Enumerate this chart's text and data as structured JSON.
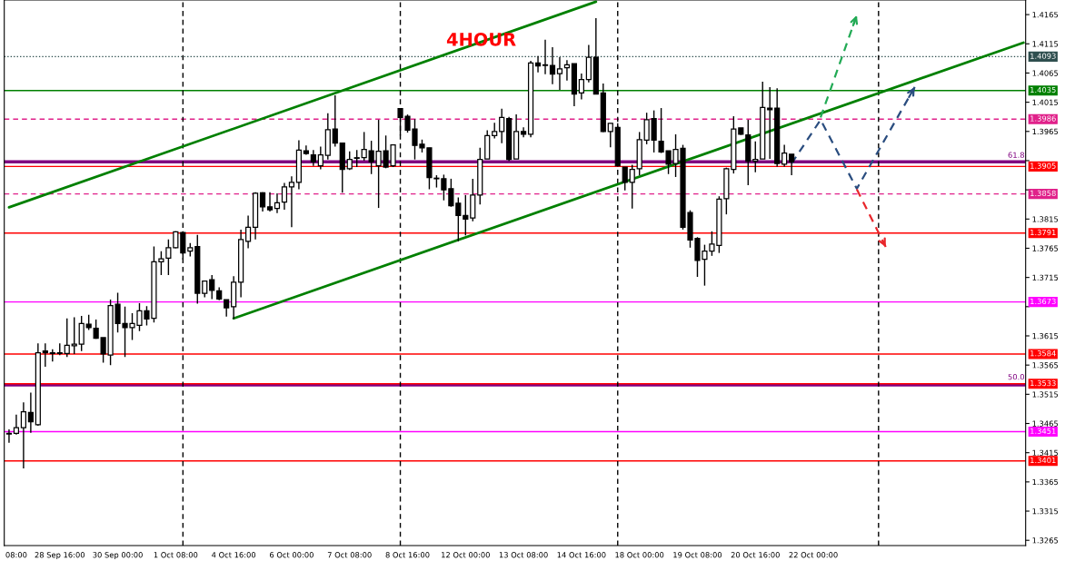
{
  "chart_data": {
    "type": "candlestick",
    "title": "4HOUR",
    "categories": [
      null,
      "08:00",
      null,
      null,
      null,
      null,
      null,
      "28 Sep 16:00",
      null,
      null,
      null,
      null,
      null,
      null,
      null,
      "30 Sep 00:00",
      null,
      null,
      null,
      null,
      null,
      null,
      null,
      "1 Oct 08:00",
      null,
      null,
      null,
      null,
      null,
      null,
      null,
      "4 Oct 16:00",
      null,
      null,
      null,
      null,
      null,
      null,
      null,
      "6 Oct 00:00",
      null,
      null,
      null,
      null,
      null,
      null,
      null,
      "7 Oct 08:00",
      null,
      null,
      null,
      null,
      null,
      null,
      null,
      "8 Oct 16:00",
      null,
      null,
      null,
      null,
      null,
      null,
      null,
      "12 Oct 00:00",
      null,
      null,
      null,
      null,
      null,
      null,
      null,
      "13 Oct 08:00",
      null,
      null,
      null,
      null,
      null,
      null,
      null,
      "14 Oct 16:00",
      null,
      null,
      null,
      null,
      null,
      null,
      null,
      "18 Oct 00:00",
      null,
      null,
      null,
      null,
      null,
      null,
      null,
      "19 Oct 08:00",
      null,
      null,
      null,
      null,
      null,
      null,
      null,
      "20 Oct 16:00",
      null,
      null,
      null,
      null,
      null,
      null,
      null,
      "22 Oct 00:00",
      null,
      null,
      null,
      null,
      null,
      null,
      null,
      null,
      null,
      null,
      null,
      null,
      null,
      null,
      null,
      null,
      null,
      null,
      null,
      null,
      null,
      null,
      null,
      null,
      null,
      null,
      null,
      null,
      null
    ],
    "ohlc": [
      [
        1.3447,
        1.3455,
        1.3432,
        1.3448
      ],
      [
        1.3448,
        1.348,
        1.3446,
        1.3458
      ],
      [
        1.3458,
        1.3501,
        1.3388,
        1.3485
      ],
      [
        1.3484,
        1.3518,
        1.3449,
        1.3468
      ],
      [
        1.3463,
        1.3602,
        1.3461,
        1.3586
      ],
      [
        1.3589,
        1.3602,
        1.3562,
        1.3586
      ],
      [
        1.3585,
        1.3592,
        1.3571,
        1.3586
      ],
      [
        1.3585,
        1.3602,
        1.3582,
        1.3586
      ],
      [
        1.3585,
        1.3645,
        1.3579,
        1.3599
      ],
      [
        1.3598,
        1.3647,
        1.3584,
        1.3601
      ],
      [
        1.3601,
        1.3649,
        1.3589,
        1.3636
      ],
      [
        1.3635,
        1.3651,
        1.3625,
        1.3629
      ],
      [
        1.3628,
        1.3643,
        1.361,
        1.3611
      ],
      [
        1.3612,
        1.3612,
        1.3569,
        1.3584
      ],
      [
        1.3582,
        1.3677,
        1.3565,
        1.3667
      ],
      [
        1.3669,
        1.3689,
        1.3621,
        1.3636
      ],
      [
        1.3636,
        1.3665,
        1.3579,
        1.3629
      ],
      [
        1.3629,
        1.3654,
        1.3608,
        1.3636
      ],
      [
        1.3633,
        1.3671,
        1.3623,
        1.3658
      ],
      [
        1.3658,
        1.3666,
        1.3633,
        1.3644
      ],
      [
        1.3645,
        1.3768,
        1.3638,
        1.3742
      ],
      [
        1.3742,
        1.376,
        1.3719,
        1.3747
      ],
      [
        1.3748,
        1.378,
        1.3719,
        1.3766
      ],
      [
        1.3766,
        1.3794,
        1.3765,
        1.3793
      ],
      [
        1.3792,
        1.3794,
        1.3746,
        1.3757
      ],
      [
        1.376,
        1.3774,
        1.3751,
        1.3766
      ],
      [
        1.3768,
        1.3788,
        1.367,
        1.3688
      ],
      [
        1.3688,
        1.3709,
        1.3681,
        1.3709
      ],
      [
        1.3711,
        1.3719,
        1.3678,
        1.3693
      ],
      [
        1.3692,
        1.3698,
        1.3676,
        1.3678
      ],
      [
        1.3677,
        1.3677,
        1.3648,
        1.3663
      ],
      [
        1.3665,
        1.3717,
        1.3644,
        1.3707
      ],
      [
        1.3707,
        1.3797,
        1.3681,
        1.378
      ],
      [
        1.3777,
        1.3821,
        1.3765,
        1.3801
      ],
      [
        1.3801,
        1.3861,
        1.378,
        1.3859
      ],
      [
        1.386,
        1.3861,
        1.3828,
        1.3836
      ],
      [
        1.3836,
        1.3861,
        1.3828,
        1.3831
      ],
      [
        1.3833,
        1.3859,
        1.3825,
        1.3843
      ],
      [
        1.3844,
        1.3877,
        1.3831,
        1.387
      ],
      [
        1.387,
        1.3888,
        1.3801,
        1.3878
      ],
      [
        1.3878,
        1.395,
        1.3866,
        1.3933
      ],
      [
        1.3932,
        1.3941,
        1.3925,
        1.3927
      ],
      [
        1.3925,
        1.3933,
        1.3906,
        1.3913
      ],
      [
        1.3906,
        1.3939,
        1.39,
        1.3925
      ],
      [
        1.3924,
        1.3996,
        1.3917,
        1.3968
      ],
      [
        1.3969,
        1.4027,
        1.3939,
        1.3945
      ],
      [
        1.3945,
        1.3945,
        1.386,
        1.39
      ],
      [
        1.3901,
        1.3931,
        1.3899,
        1.3917
      ],
      [
        1.3919,
        1.3933,
        1.3904,
        1.392
      ],
      [
        1.392,
        1.3964,
        1.3915,
        1.3934
      ],
      [
        1.3932,
        1.3949,
        1.3892,
        1.3913
      ],
      [
        1.3906,
        1.3985,
        1.3834,
        1.3931
      ],
      [
        1.3932,
        1.3958,
        1.3902,
        1.3904
      ],
      [
        1.3906,
        1.3942,
        1.3904,
        1.3942
      ],
      [
        1.4004,
        1.4004,
        1.3958,
        1.3989
      ],
      [
        1.3991,
        1.3994,
        1.3963,
        1.3967
      ],
      [
        1.3969,
        1.3986,
        1.3917,
        1.3941
      ],
      [
        1.3943,
        1.3951,
        1.3929,
        1.3937
      ],
      [
        1.3937,
        1.3937,
        1.3866,
        1.3886
      ],
      [
        1.3885,
        1.389,
        1.3869,
        1.3884
      ],
      [
        1.3884,
        1.3891,
        1.3847,
        1.3865
      ],
      [
        1.3867,
        1.3884,
        1.3836,
        1.3838
      ],
      [
        1.3842,
        1.3852,
        1.3777,
        1.3821
      ],
      [
        1.3821,
        1.3856,
        1.3787,
        1.3815
      ],
      [
        1.3817,
        1.3884,
        1.3811,
        1.3856
      ],
      [
        1.3856,
        1.3937,
        1.384,
        1.3917
      ],
      [
        1.3918,
        1.3967,
        1.3918,
        1.3958
      ],
      [
        1.3958,
        1.398,
        1.3953,
        1.3965
      ],
      [
        1.3965,
        1.4004,
        1.3945,
        1.3989
      ],
      [
        1.3987,
        1.399,
        1.3914,
        1.3917
      ],
      [
        1.3918,
        1.3994,
        1.3918,
        1.3965
      ],
      [
        1.3965,
        1.3972,
        1.3955,
        1.396
      ],
      [
        1.396,
        1.4086,
        1.3955,
        1.4082
      ],
      [
        1.4082,
        1.4094,
        1.4066,
        1.4077
      ],
      [
        1.4079,
        1.4122,
        1.4063,
        1.4078
      ],
      [
        1.4078,
        1.4109,
        1.4046,
        1.4063
      ],
      [
        1.4064,
        1.4092,
        1.4036,
        1.4072
      ],
      [
        1.4074,
        1.4087,
        1.4052,
        1.4079
      ],
      [
        1.4081,
        1.4081,
        1.4008,
        1.4029
      ],
      [
        1.4031,
        1.4064,
        1.402,
        1.4054
      ],
      [
        1.4054,
        1.4113,
        1.4049,
        1.4092
      ],
      [
        1.4092,
        1.4159,
        1.4029,
        1.4029
      ],
      [
        1.4031,
        1.4047,
        1.3964,
        1.3965
      ],
      [
        1.3965,
        1.3979,
        1.3938,
        1.3979
      ],
      [
        1.3972,
        1.3979,
        1.3905,
        1.3906
      ],
      [
        1.3904,
        1.3904,
        1.3864,
        1.3878
      ],
      [
        1.3878,
        1.3908,
        1.3833,
        1.39
      ],
      [
        1.3901,
        1.3964,
        1.389,
        1.3951
      ],
      [
        1.395,
        1.3997,
        1.3943,
        1.3985
      ],
      [
        1.3987,
        1.4001,
        1.3929,
        1.395
      ],
      [
        1.3948,
        1.4005,
        1.3928,
        1.393
      ],
      [
        1.3932,
        1.3932,
        1.3892,
        1.3909
      ],
      [
        1.391,
        1.396,
        1.3887,
        1.3934
      ],
      [
        1.3936,
        1.3942,
        1.3797,
        1.3801
      ],
      [
        1.3826,
        1.383,
        1.3766,
        1.3779
      ],
      [
        1.3782,
        1.3784,
        1.3716,
        1.3744
      ],
      [
        1.3746,
        1.3771,
        1.3701,
        1.376
      ],
      [
        1.376,
        1.3794,
        1.3752,
        1.3772
      ],
      [
        1.377,
        1.3854,
        1.3757,
        1.3849
      ],
      [
        1.385,
        1.3903,
        1.3823,
        1.3901
      ],
      [
        1.39,
        1.3991,
        1.3893,
        1.3969
      ],
      [
        1.3971,
        1.3971,
        1.3959,
        1.396
      ],
      [
        1.3959,
        1.3985,
        1.3873,
        1.3914
      ],
      [
        1.3914,
        1.3948,
        1.3895,
        1.3917
      ],
      [
        1.3918,
        1.405,
        1.3918,
        1.4006
      ],
      [
        1.4005,
        1.4041,
        1.3918,
        1.4002
      ],
      [
        1.4005,
        1.4039,
        1.3905,
        1.391
      ],
      [
        1.3909,
        1.3942,
        1.3905,
        1.3928
      ],
      [
        1.3926,
        1.3926,
        1.389,
        1.3913
      ],
      null,
      null,
      null,
      null,
      null,
      null,
      null,
      null,
      null,
      null,
      null,
      null,
      null,
      null,
      null,
      null,
      null,
      null,
      null,
      null,
      null,
      null,
      null,
      null,
      null,
      null,
      null,
      null,
      null,
      null,
      null,
      null
    ],
    "series": [
      {
        "type": "line",
        "color": "#008000",
        "line_style": "solid",
        "values": [
          1.3835,
          null,
          null,
          null,
          null,
          null,
          null,
          null,
          null,
          null,
          null,
          null,
          null,
          null,
          null,
          null,
          null,
          null,
          null,
          null,
          null,
          null,
          null,
          null,
          null,
          null,
          null,
          null,
          null,
          null,
          null,
          null,
          null,
          null,
          null,
          null,
          null,
          null,
          null,
          null,
          null,
          null,
          null,
          null,
          null,
          null,
          null,
          null,
          null,
          null,
          null,
          null,
          null,
          null,
          null,
          null,
          null,
          null,
          null,
          null,
          null,
          null,
          null,
          null,
          null,
          null,
          null,
          null,
          null,
          null,
          null,
          null,
          null,
          null,
          null,
          null,
          null,
          null,
          null,
          null,
          null,
          1.4187,
          null,
          null,
          null,
          null,
          null,
          null,
          null,
          null,
          null,
          null,
          null,
          null,
          null,
          null,
          null,
          null,
          null,
          null,
          null,
          null,
          null,
          null,
          null,
          null,
          null,
          null,
          null,
          null,
          null,
          null,
          null,
          null,
          null,
          null,
          null,
          null,
          null,
          null,
          null,
          null,
          null,
          null,
          null,
          null,
          null,
          null,
          null,
          null,
          null,
          null,
          null,
          null,
          null,
          null,
          null,
          null,
          null,
          null,
          null
        ]
      },
      {
        "type": "line",
        "color": "#008000",
        "line_style": "solid",
        "values": [
          null,
          null,
          null,
          null,
          null,
          null,
          null,
          null,
          null,
          null,
          null,
          null,
          null,
          null,
          null,
          null,
          null,
          null,
          null,
          null,
          null,
          null,
          null,
          null,
          null,
          null,
          null,
          null,
          null,
          null,
          null,
          1.3645,
          null,
          null,
          null,
          null,
          null,
          null,
          null,
          null,
          null,
          null,
          null,
          null,
          null,
          null,
          null,
          null,
          null,
          null,
          null,
          null,
          null,
          null,
          null,
          null,
          null,
          null,
          null,
          null,
          null,
          null,
          null,
          null,
          null,
          null,
          null,
          null,
          null,
          null,
          null,
          null,
          null,
          null,
          null,
          null,
          null,
          null,
          null,
          null,
          null,
          null,
          null,
          null,
          null,
          null,
          null,
          null,
          null,
          null,
          null,
          null,
          null,
          null,
          null,
          null,
          null,
          null,
          null,
          null,
          null,
          null,
          null,
          null,
          null,
          null,
          null,
          null,
          null,
          null,
          null,
          null,
          null,
          null,
          null,
          null,
          null,
          null,
          null,
          null,
          null,
          null,
          null,
          null,
          null,
          null,
          null,
          null,
          null,
          null,
          null,
          null,
          null,
          null,
          null,
          null,
          null,
          null,
          null,
          null,
          1.4117
        ]
      },
      {
        "type": "line",
        "color": "#22aa55",
        "line_style": "dashed",
        "values": [
          null,
          null,
          null,
          null,
          null,
          null,
          null,
          null,
          null,
          null,
          null,
          null,
          null,
          null,
          null,
          null,
          null,
          null,
          null,
          null,
          null,
          null,
          null,
          null,
          null,
          null,
          null,
          null,
          null,
          null,
          null,
          null,
          null,
          null,
          null,
          null,
          null,
          null,
          null,
          null,
          null,
          null,
          null,
          null,
          null,
          null,
          null,
          null,
          null,
          null,
          null,
          null,
          null,
          null,
          null,
          null,
          null,
          null,
          null,
          null,
          null,
          null,
          null,
          null,
          null,
          null,
          null,
          null,
          null,
          null,
          null,
          null,
          null,
          null,
          null,
          null,
          null,
          null,
          null,
          null,
          null,
          null,
          null,
          null,
          null,
          null,
          null,
          null,
          null,
          null,
          null,
          null,
          null,
          null,
          null,
          null,
          null,
          null,
          null,
          null,
          null,
          null,
          null,
          null,
          null,
          null,
          null,
          null,
          null,
          null,
          null,
          null,
          1.3989,
          null,
          null,
          null,
          null,
          1.4164,
          null,
          null,
          null,
          null,
          null,
          null,
          null,
          null,
          null,
          null,
          null,
          null,
          null,
          null,
          null,
          null,
          null,
          null,
          null,
          null,
          null,
          null,
          null
        ]
      },
      {
        "type": "line",
        "color": "#2a4d7f",
        "line_style": "dashed",
        "values": [
          null,
          null,
          null,
          null,
          null,
          null,
          null,
          null,
          null,
          null,
          null,
          null,
          null,
          null,
          null,
          null,
          null,
          null,
          null,
          null,
          null,
          null,
          null,
          null,
          null,
          null,
          null,
          null,
          null,
          null,
          null,
          null,
          null,
          null,
          null,
          null,
          null,
          null,
          null,
          null,
          null,
          null,
          null,
          null,
          null,
          null,
          null,
          null,
          null,
          null,
          null,
          null,
          null,
          null,
          null,
          null,
          null,
          null,
          null,
          null,
          null,
          null,
          null,
          null,
          null,
          null,
          null,
          null,
          null,
          null,
          null,
          null,
          null,
          null,
          null,
          null,
          null,
          null,
          null,
          null,
          null,
          null,
          null,
          null,
          null,
          null,
          null,
          null,
          null,
          null,
          null,
          null,
          null,
          null,
          null,
          null,
          null,
          null,
          null,
          null,
          null,
          null,
          null,
          null,
          null,
          null,
          null,
          null,
          1.391,
          null,
          null,
          null,
          1.3985,
          null,
          null,
          null,
          null,
          1.3867,
          null,
          null,
          null,
          null,
          null,
          null,
          null,
          1.4041,
          null,
          null,
          null,
          null,
          null,
          null,
          null,
          null,
          null,
          null,
          null,
          null,
          null,
          null,
          null
        ]
      },
      {
        "type": "line",
        "color": "#e8262b",
        "line_style": "dashed",
        "values": [
          null,
          null,
          null,
          null,
          null,
          null,
          null,
          null,
          null,
          null,
          null,
          null,
          null,
          null,
          null,
          null,
          null,
          null,
          null,
          null,
          null,
          null,
          null,
          null,
          null,
          null,
          null,
          null,
          null,
          null,
          null,
          null,
          null,
          null,
          null,
          null,
          null,
          null,
          null,
          null,
          null,
          null,
          null,
          null,
          null,
          null,
          null,
          null,
          null,
          null,
          null,
          null,
          null,
          null,
          null,
          null,
          null,
          null,
          null,
          null,
          null,
          null,
          null,
          null,
          null,
          null,
          null,
          null,
          null,
          null,
          null,
          null,
          null,
          null,
          null,
          null,
          null,
          null,
          null,
          null,
          null,
          null,
          null,
          null,
          null,
          null,
          null,
          null,
          null,
          null,
          null,
          null,
          null,
          null,
          null,
          null,
          null,
          null,
          null,
          null,
          null,
          null,
          null,
          null,
          null,
          null,
          null,
          null,
          null,
          null,
          null,
          null,
          null,
          null,
          null,
          null,
          null,
          1.3866,
          null,
          null,
          null,
          1.3767,
          null,
          null,
          null,
          null,
          null,
          null,
          null,
          null,
          null,
          null,
          null,
          null,
          null,
          null,
          null,
          null,
          null,
          null,
          null
        ]
      }
    ],
    "ref_lines": [
      {
        "axis": "y",
        "value": 1.4093,
        "label": "1.4093",
        "color": "#2f4f4f",
        "line_style": "dotted"
      },
      {
        "axis": "y",
        "value": 1.4035,
        "label": "1.4035",
        "color": "#008000",
        "line_style": "solid"
      },
      {
        "axis": "y",
        "value": 1.3986,
        "label": "1.3986",
        "color": "#e0218a",
        "line_style": "dashed"
      },
      {
        "axis": "y",
        "value": 1.3913,
        "color": "#800080",
        "line_style": "solid"
      },
      {
        "axis": "y",
        "value": 1.3905,
        "label": "1.3905",
        "color": "#ff0000",
        "line_style": "solid"
      },
      {
        "axis": "y",
        "value": 1.3858,
        "label": "1.3858",
        "color": "#e0218a",
        "line_style": "dashed"
      },
      {
        "axis": "y",
        "value": 1.3791,
        "label": "1.3791",
        "color": "#ff0000",
        "line_style": "solid"
      },
      {
        "axis": "y",
        "value": 1.3673,
        "label": "1.3673",
        "color": "#ff00ff",
        "line_style": "solid"
      },
      {
        "axis": "y",
        "value": 1.3584,
        "label": "1.3584",
        "color": "#ff0000",
        "line_style": "solid"
      },
      {
        "axis": "y",
        "value": 1.3531,
        "color": "#800080",
        "line_style": "solid"
      },
      {
        "axis": "y",
        "value": 1.3533,
        "label": "1.3533",
        "color": "#ff0000",
        "line_style": "solid"
      },
      {
        "axis": "y",
        "value": 1.3451,
        "label": "1.3451",
        "color": "#ff00ff",
        "line_style": "solid"
      },
      {
        "axis": "y",
        "value": 1.3401,
        "label": "1.3401",
        "color": "#ff0000",
        "line_style": "solid"
      }
    ],
    "annotations": [
      {
        "text": "61.8",
        "y": 1.3913
      },
      {
        "text": "50.0",
        "y": 1.3533
      }
    ],
    "ylim": [
      1.3256,
      1.419
    ],
    "yticks": [
      1.3265,
      1.3315,
      1.3365,
      1.3415,
      1.3465,
      1.3515,
      1.3565,
      1.3615,
      {
        "value": 1.3665,
        "label": null
      },
      1.3715,
      1.3765,
      1.3815,
      {
        "value": 1.3865,
        "label": null
      },
      {
        "value": 1.3915,
        "label": null
      },
      1.3965,
      1.4015,
      1.4065,
      1.4115,
      1.4165
    ]
  }
}
